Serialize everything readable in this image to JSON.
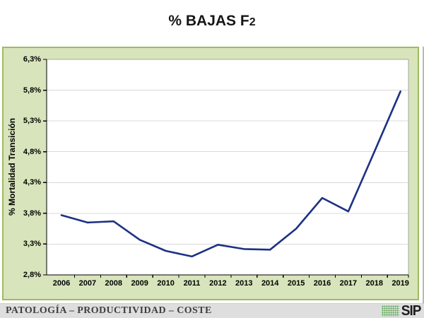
{
  "title": {
    "prefix": "% BAJAS F",
    "sub": "2",
    "full": "% BAJAS F2"
  },
  "y_axis": {
    "title": "% Mortalidad Transición"
  },
  "footer": {
    "text": "PATOLOGÍA – PRODUCTIVIDAD – COSTE",
    "logo_text": "SIP"
  },
  "colors": {
    "panel_bg": "#d8e4bb",
    "panel_border": "#9dbb61",
    "plot_bg": "#ffffff",
    "plot_frame": "#a6a6a6",
    "axis": "#000000",
    "grid": "#d9d9d9",
    "line": "#1d3184",
    "footer_bg": "#dedede",
    "footer_text": "#3f3f3f",
    "logo_dots": "#4fa348",
    "logo_text": "#1c1c1c"
  },
  "chart_data": {
    "type": "line",
    "title": "% BAJAS F2",
    "xlabel": "",
    "ylabel": "% Mortalidad Transición",
    "x": [
      "2006",
      "2007",
      "2008",
      "2009",
      "2010",
      "2011",
      "2012",
      "2013",
      "2014",
      "2015",
      "2016",
      "2017",
      "2018",
      "2019"
    ],
    "series": [
      {
        "name": "% Bajas F2",
        "values": [
          3.77,
          3.65,
          3.67,
          3.37,
          3.19,
          3.1,
          3.29,
          3.22,
          3.21,
          3.55,
          4.05,
          3.83,
          4.8,
          5.78
        ]
      }
    ],
    "ylim": [
      2.8,
      6.3
    ],
    "ytick_step": 0.5,
    "ytick_labels": [
      "2,8%",
      "3,3%",
      "3,8%",
      "4,3%",
      "4,8%",
      "5,3%",
      "5,8%",
      "6,3%"
    ],
    "grid": true,
    "legend_position": "none"
  }
}
